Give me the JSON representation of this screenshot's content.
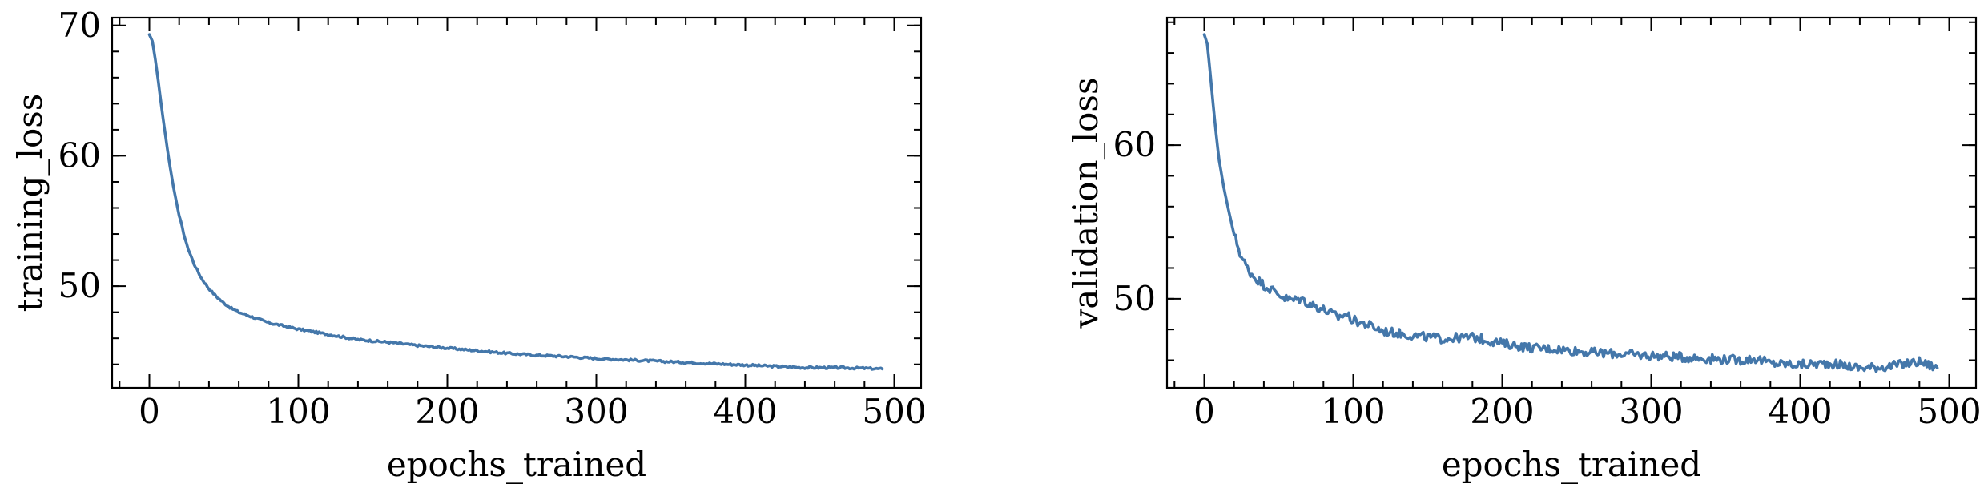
{
  "chart_data": [
    {
      "type": "line",
      "xlabel": "epochs_trained",
      "ylabel": "training_loss",
      "xlim": [
        -25,
        518
      ],
      "ylim": [
        42.2,
        70.6
      ],
      "xticks": [
        0,
        100,
        200,
        300,
        400,
        500
      ],
      "yticks": [
        50,
        60,
        70
      ],
      "xtick_labels": [
        "0",
        "100",
        "200",
        "300",
        "400",
        "500"
      ],
      "ytick_labels": [
        "50",
        "60",
        "70"
      ],
      "x_minor_step": 20,
      "y_minor_step": 2,
      "grid": false,
      "color": "#4477aa",
      "noise": 0.08,
      "x": [
        0,
        2,
        4,
        6,
        8,
        10,
        13,
        16,
        20,
        25,
        30,
        35,
        40,
        45,
        50,
        55,
        60,
        70,
        80,
        90,
        100,
        120,
        140,
        160,
        180,
        200,
        220,
        240,
        260,
        280,
        300,
        320,
        340,
        360,
        380,
        400,
        420,
        440,
        460,
        480,
        492
      ],
      "y": [
        69.3,
        68.8,
        67.4,
        65.7,
        63.9,
        62.2,
        59.8,
        57.7,
        55.4,
        53.2,
        51.7,
        50.6,
        49.8,
        49.2,
        48.7,
        48.3,
        48.0,
        47.6,
        47.2,
        46.95,
        46.7,
        46.3,
        45.9,
        45.7,
        45.45,
        45.25,
        45.05,
        44.85,
        44.7,
        44.6,
        44.45,
        44.35,
        44.25,
        44.15,
        44.05,
        43.95,
        43.85,
        43.75,
        43.75,
        43.7,
        43.65
      ]
    },
    {
      "type": "line",
      "xlabel": "epochs_trained",
      "ylabel": "validation_loss",
      "xlim": [
        -25,
        518
      ],
      "ylim": [
        44.2,
        68.3
      ],
      "xticks": [
        0,
        100,
        200,
        300,
        400,
        500
      ],
      "yticks": [
        50,
        60
      ],
      "xtick_labels": [
        "0",
        "100",
        "200",
        "300",
        "400",
        "500"
      ],
      "ytick_labels": [
        "50",
        "60"
      ],
      "x_minor_step": 20,
      "y_minor_step": 2,
      "grid": false,
      "color": "#4477aa",
      "noise": 0.3,
      "x": [
        0,
        2,
        4,
        6,
        8,
        10,
        13,
        16,
        20,
        25,
        30,
        35,
        40,
        45,
        50,
        55,
        60,
        65,
        70,
        80,
        90,
        95,
        100,
        110,
        120,
        140,
        160,
        180,
        200,
        220,
        240,
        260,
        280,
        300,
        320,
        340,
        360,
        370,
        380,
        400,
        420,
        440,
        460,
        480,
        492
      ],
      "y": [
        67.2,
        66.6,
        64.7,
        62.6,
        60.7,
        59.0,
        57.3,
        55.9,
        54.2,
        52.7,
        51.8,
        51.3,
        50.9,
        50.6,
        50.3,
        50.0,
        49.9,
        50.0,
        49.7,
        49.3,
        48.8,
        49.0,
        48.6,
        48.3,
        47.9,
        47.6,
        47.4,
        47.5,
        47.1,
        46.8,
        46.7,
        46.5,
        46.4,
        46.3,
        46.2,
        46.1,
        46.0,
        46.1,
        45.8,
        45.7,
        45.8,
        45.5,
        45.6,
        45.9,
        45.5
      ]
    }
  ]
}
